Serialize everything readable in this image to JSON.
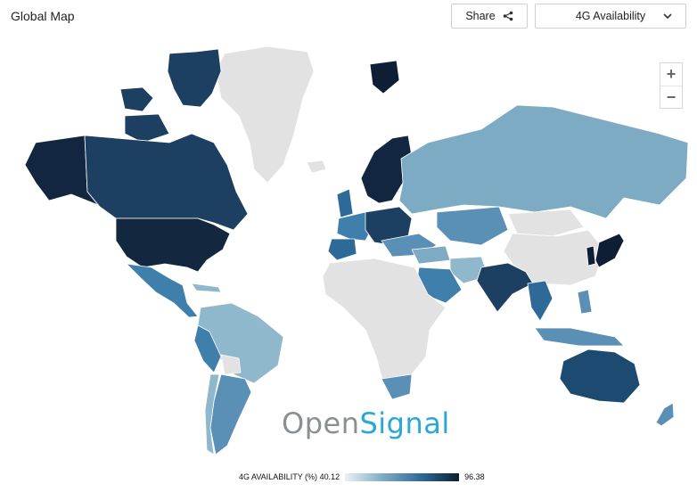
{
  "header": {
    "title": "Global Map"
  },
  "toolbar": {
    "share_label": "Share",
    "metric_selected": "4G Availability"
  },
  "zoom": {
    "in_label": "+",
    "out_label": "−"
  },
  "brand": {
    "open": "Open",
    "signal": "Signal"
  },
  "legend": {
    "label": "4G AVAILABILITY (%)",
    "min": "40.12",
    "max": "96.38",
    "color_low": "#e8f3f6",
    "color_high": "#0c1e33"
  },
  "colors": {
    "no_data": "#e2e2e2",
    "border": "#ffffff"
  }
}
